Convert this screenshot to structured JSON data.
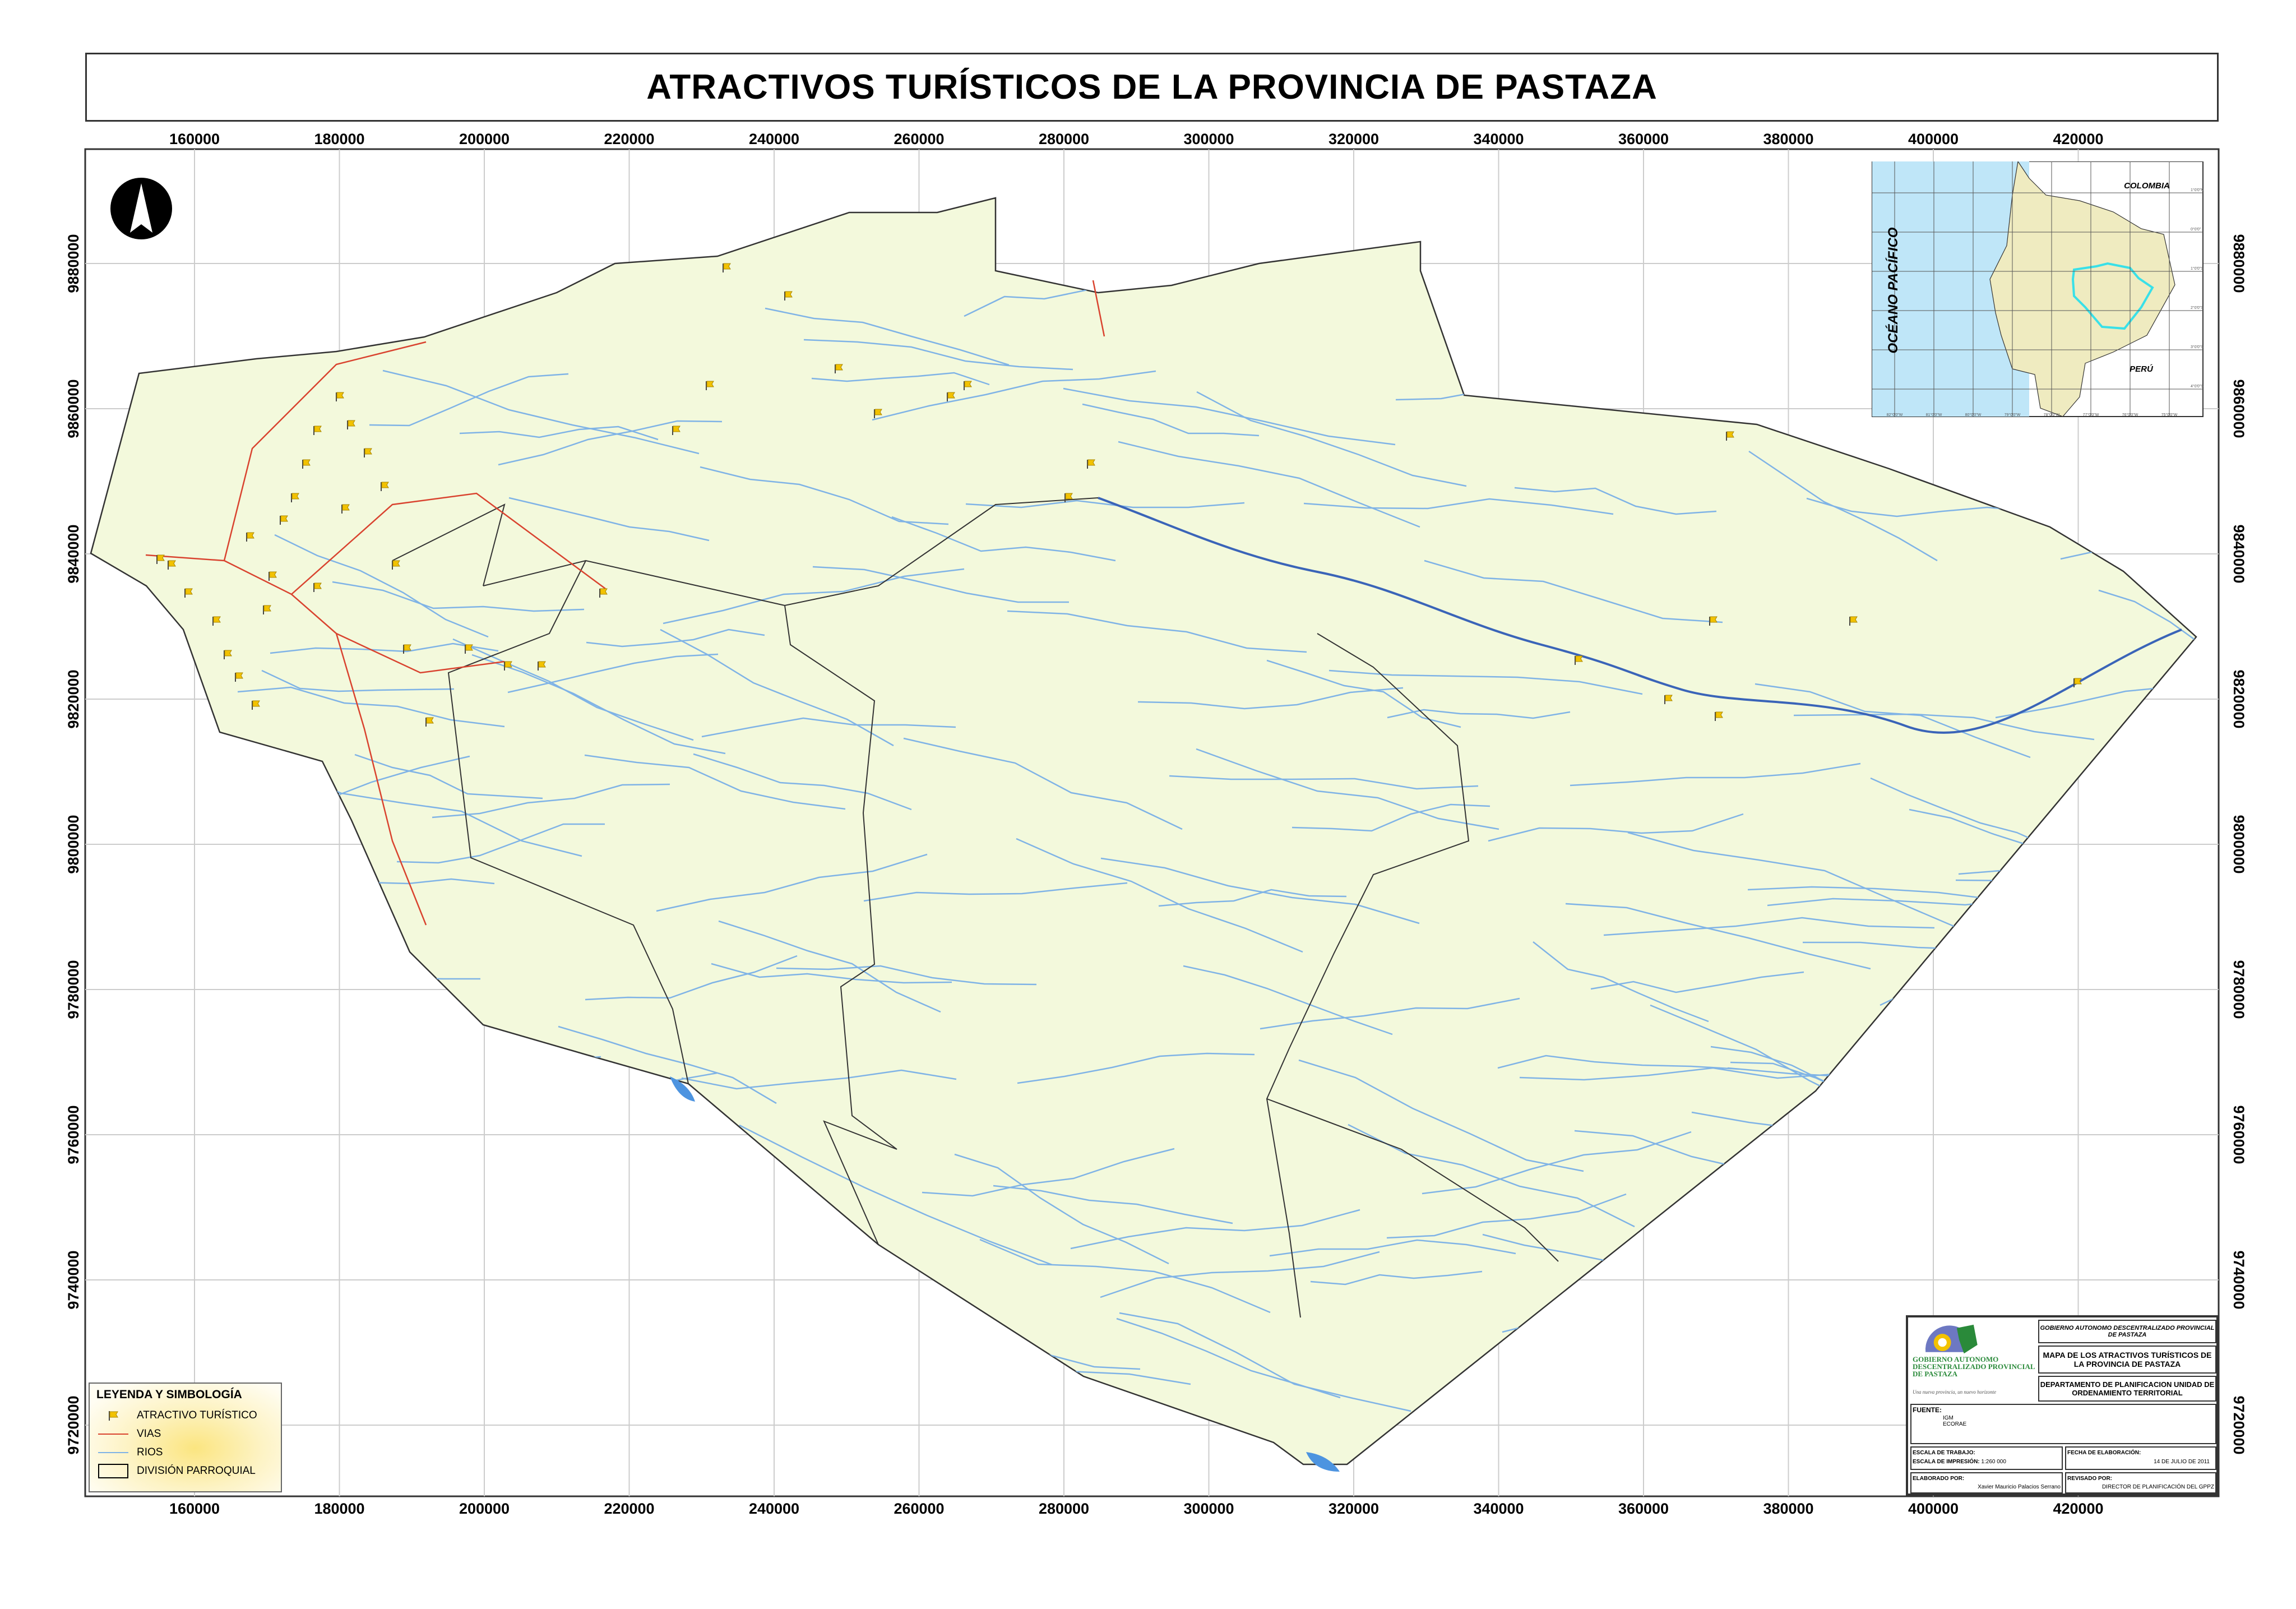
{
  "title": "ATRACTIVOS TURÍSTICOS DE LA PROVINCIA DE PASTAZA",
  "x_ticks": [
    "160000",
    "180000",
    "200000",
    "220000",
    "240000",
    "260000",
    "280000",
    "300000",
    "320000",
    "340000",
    "360000",
    "380000",
    "400000",
    "420000"
  ],
  "y_ticks": [
    "9880000",
    "9860000",
    "9840000",
    "9820000",
    "9800000",
    "9780000",
    "9760000",
    "9740000",
    "9720000"
  ],
  "legend": {
    "title": "LEYENDA Y SIMBOLOGÍA",
    "items": [
      {
        "label": "ATRACTIVO TURÍSTICO",
        "symbol": "flag-icon",
        "color": "#f2c200"
      },
      {
        "label": "VIAS",
        "symbol": "line",
        "color": "#d9432f"
      },
      {
        "label": "RIOS",
        "symbol": "line",
        "color": "#7fb3e6"
      },
      {
        "label": "DIVISIÓN PARROQUIAL",
        "symbol": "box",
        "color": "#000000"
      }
    ]
  },
  "inset": {
    "ocean": "OCÉANO PACÍFICO",
    "north": "COLOMBIA",
    "south": "PERÚ",
    "lon_ticks": [
      "82°0'0\"W",
      "81°0'0\"W",
      "80°0'0\"W",
      "79°0'0\"W",
      "78°0'0\"W",
      "77°0'0\"W",
      "76°0'0\"W",
      "75°0'0\"W"
    ],
    "lat_ticks": [
      "1°0'0\"N",
      "0°0'0\"",
      "1°0'0\"S",
      "2°0'0\"S",
      "3°0'0\"S",
      "4°0'0\"S",
      "5°0'0\"S"
    ],
    "colors": {
      "ocean": "#bfe6f8",
      "land": "#efebc0",
      "highlight": "#39e0e8"
    }
  },
  "title_block": {
    "logo_text": "GOBIERNO AUTONOMO DESCENTRALIZADO PROVINCIAL DE PASTAZA",
    "logo_slogan": "Una nueva provincia, un nuevo horizonte",
    "org": "GOBIERNO AUTONOMO DESCENTRALIZADO PROVINCIAL DE PASTAZA",
    "map_title": "MAPA DE LOS ATRACTIVOS TURÍSTICOS DE LA PROVINCIA DE PASTAZA",
    "dept": "DEPARTAMENTO DE PLANIFICACION UNIDAD DE ORDENAMIENTO TERRITORIAL",
    "fuente_label": "FUENTE:",
    "fuente": [
      "IGM",
      "ECORAE"
    ],
    "escala_trabajo_label": "ESCALA DE TRABAJO:",
    "escala_impresion_label": "ESCALA DE IMPRESIÓN:",
    "escala_impresion": "1:260 000",
    "fecha_label": "FECHA DE ELABORACIÓN:",
    "fecha": "14 DE JULIO DE 2011",
    "elaborado_label": "ELABORADO POR:",
    "elaborado": "Xavier Mauricio Palacios Serrano",
    "revisado_label": "REVISADO POR:",
    "revisado": "DIRECTOR DE PLANIFICACIÓN DEL GPPZ"
  },
  "colors": {
    "province": "#f3f9dc",
    "rivers": "#7fb3e6",
    "roads": "#d9432f",
    "boundary": "#000000",
    "lakes": "#4d94e0"
  }
}
